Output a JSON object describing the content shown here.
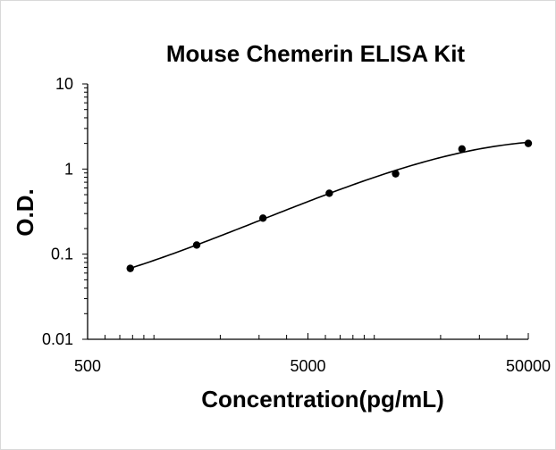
{
  "chart_data": {
    "type": "scatter",
    "title": "Mouse Chemerin ELISA Kit",
    "xlabel": "Concentration(pg/mL)",
    "ylabel": "O.D.",
    "x_scale": "log",
    "y_scale": "log",
    "xlim": [
      500,
      50000
    ],
    "ylim": [
      0.01,
      10
    ],
    "x_ticks": [
      {
        "value": 500,
        "label": "500"
      },
      {
        "value": 5000,
        "label": "5000"
      },
      {
        "value": 50000,
        "label": "50000"
      }
    ],
    "y_ticks": [
      {
        "value": 10,
        "label": "10"
      },
      {
        "value": 1,
        "label": "1"
      },
      {
        "value": 0.1,
        "label": "0.1"
      },
      {
        "value": 0.01,
        "label": "0.01"
      }
    ],
    "grid": false,
    "legend": "none",
    "series": [
      {
        "x": [
          781,
          1563,
          3125,
          6250,
          12500,
          25000,
          50000
        ],
        "y": [
          0.068,
          0.128,
          0.265,
          0.52,
          0.88,
          1.72,
          2.0
        ],
        "marker": "circle",
        "fit": "smooth-curve"
      }
    ],
    "colors": {
      "points": "#000000",
      "curve": "#000000",
      "axes": "#000000"
    }
  }
}
